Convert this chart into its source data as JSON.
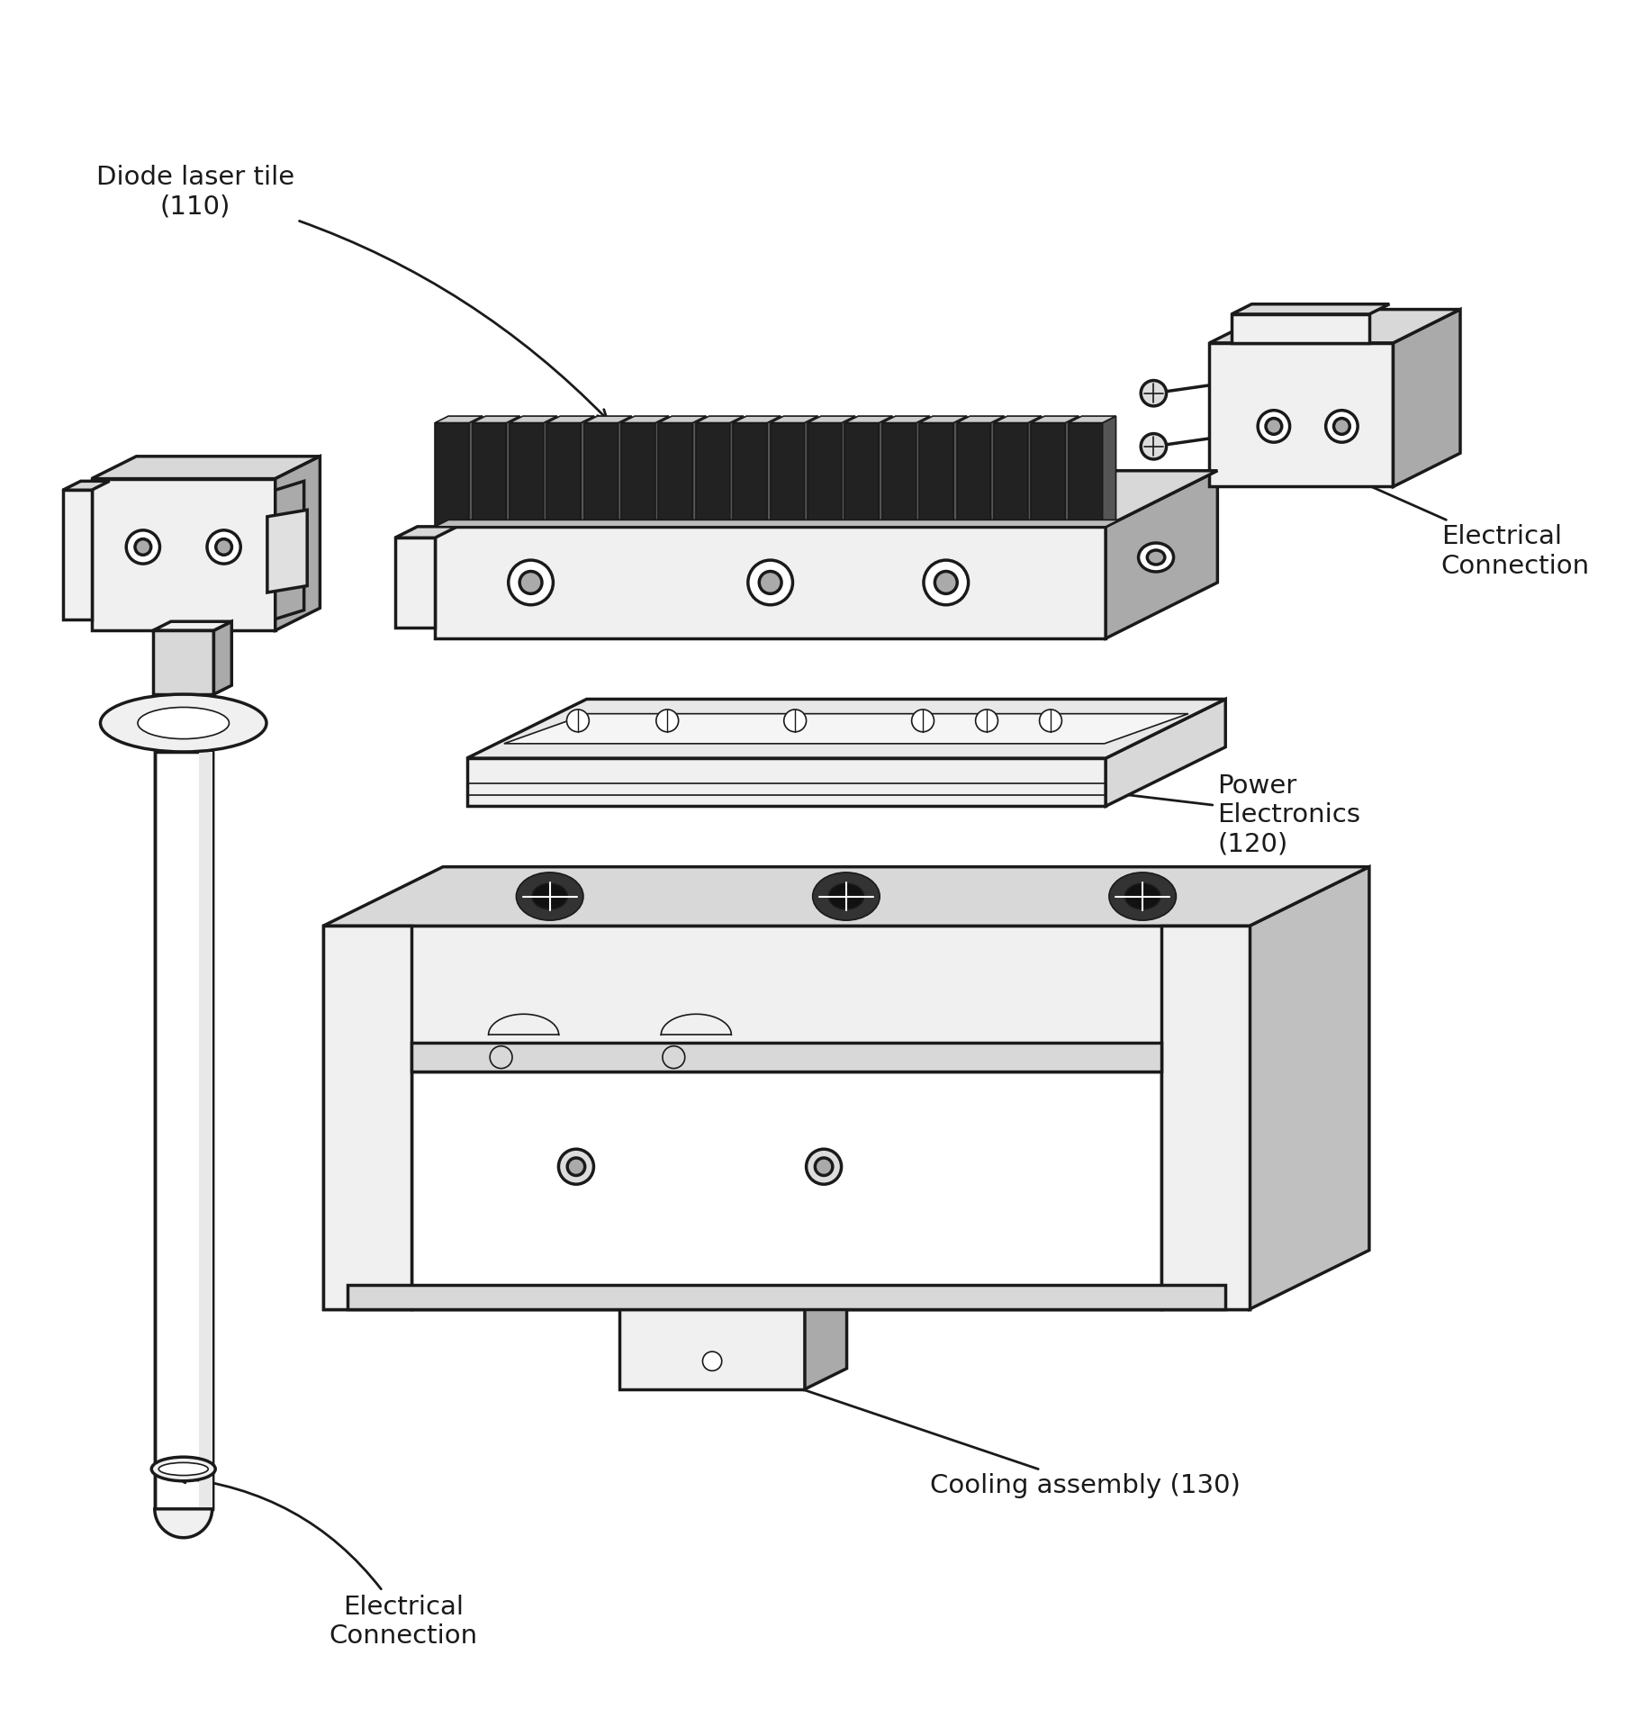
{
  "bg": "#ffffff",
  "lc": "#1a1a1a",
  "lw_main": 2.5,
  "lw_thin": 1.2,
  "fill_white": "#ffffff",
  "fill_light": "#f0f0f0",
  "fill_mid": "#d8d8d8",
  "fill_dark": "#aaaaaa",
  "fill_darker": "#666666",
  "labels": {
    "diode_laser": "Diode laser tile\n(110)",
    "elec_top": "Electrical\nConnection",
    "power_elec": "Power\nElectronics\n(120)",
    "cooling": "Cooling assembly (130)",
    "elec_bot": "Electrical\nConnection"
  }
}
